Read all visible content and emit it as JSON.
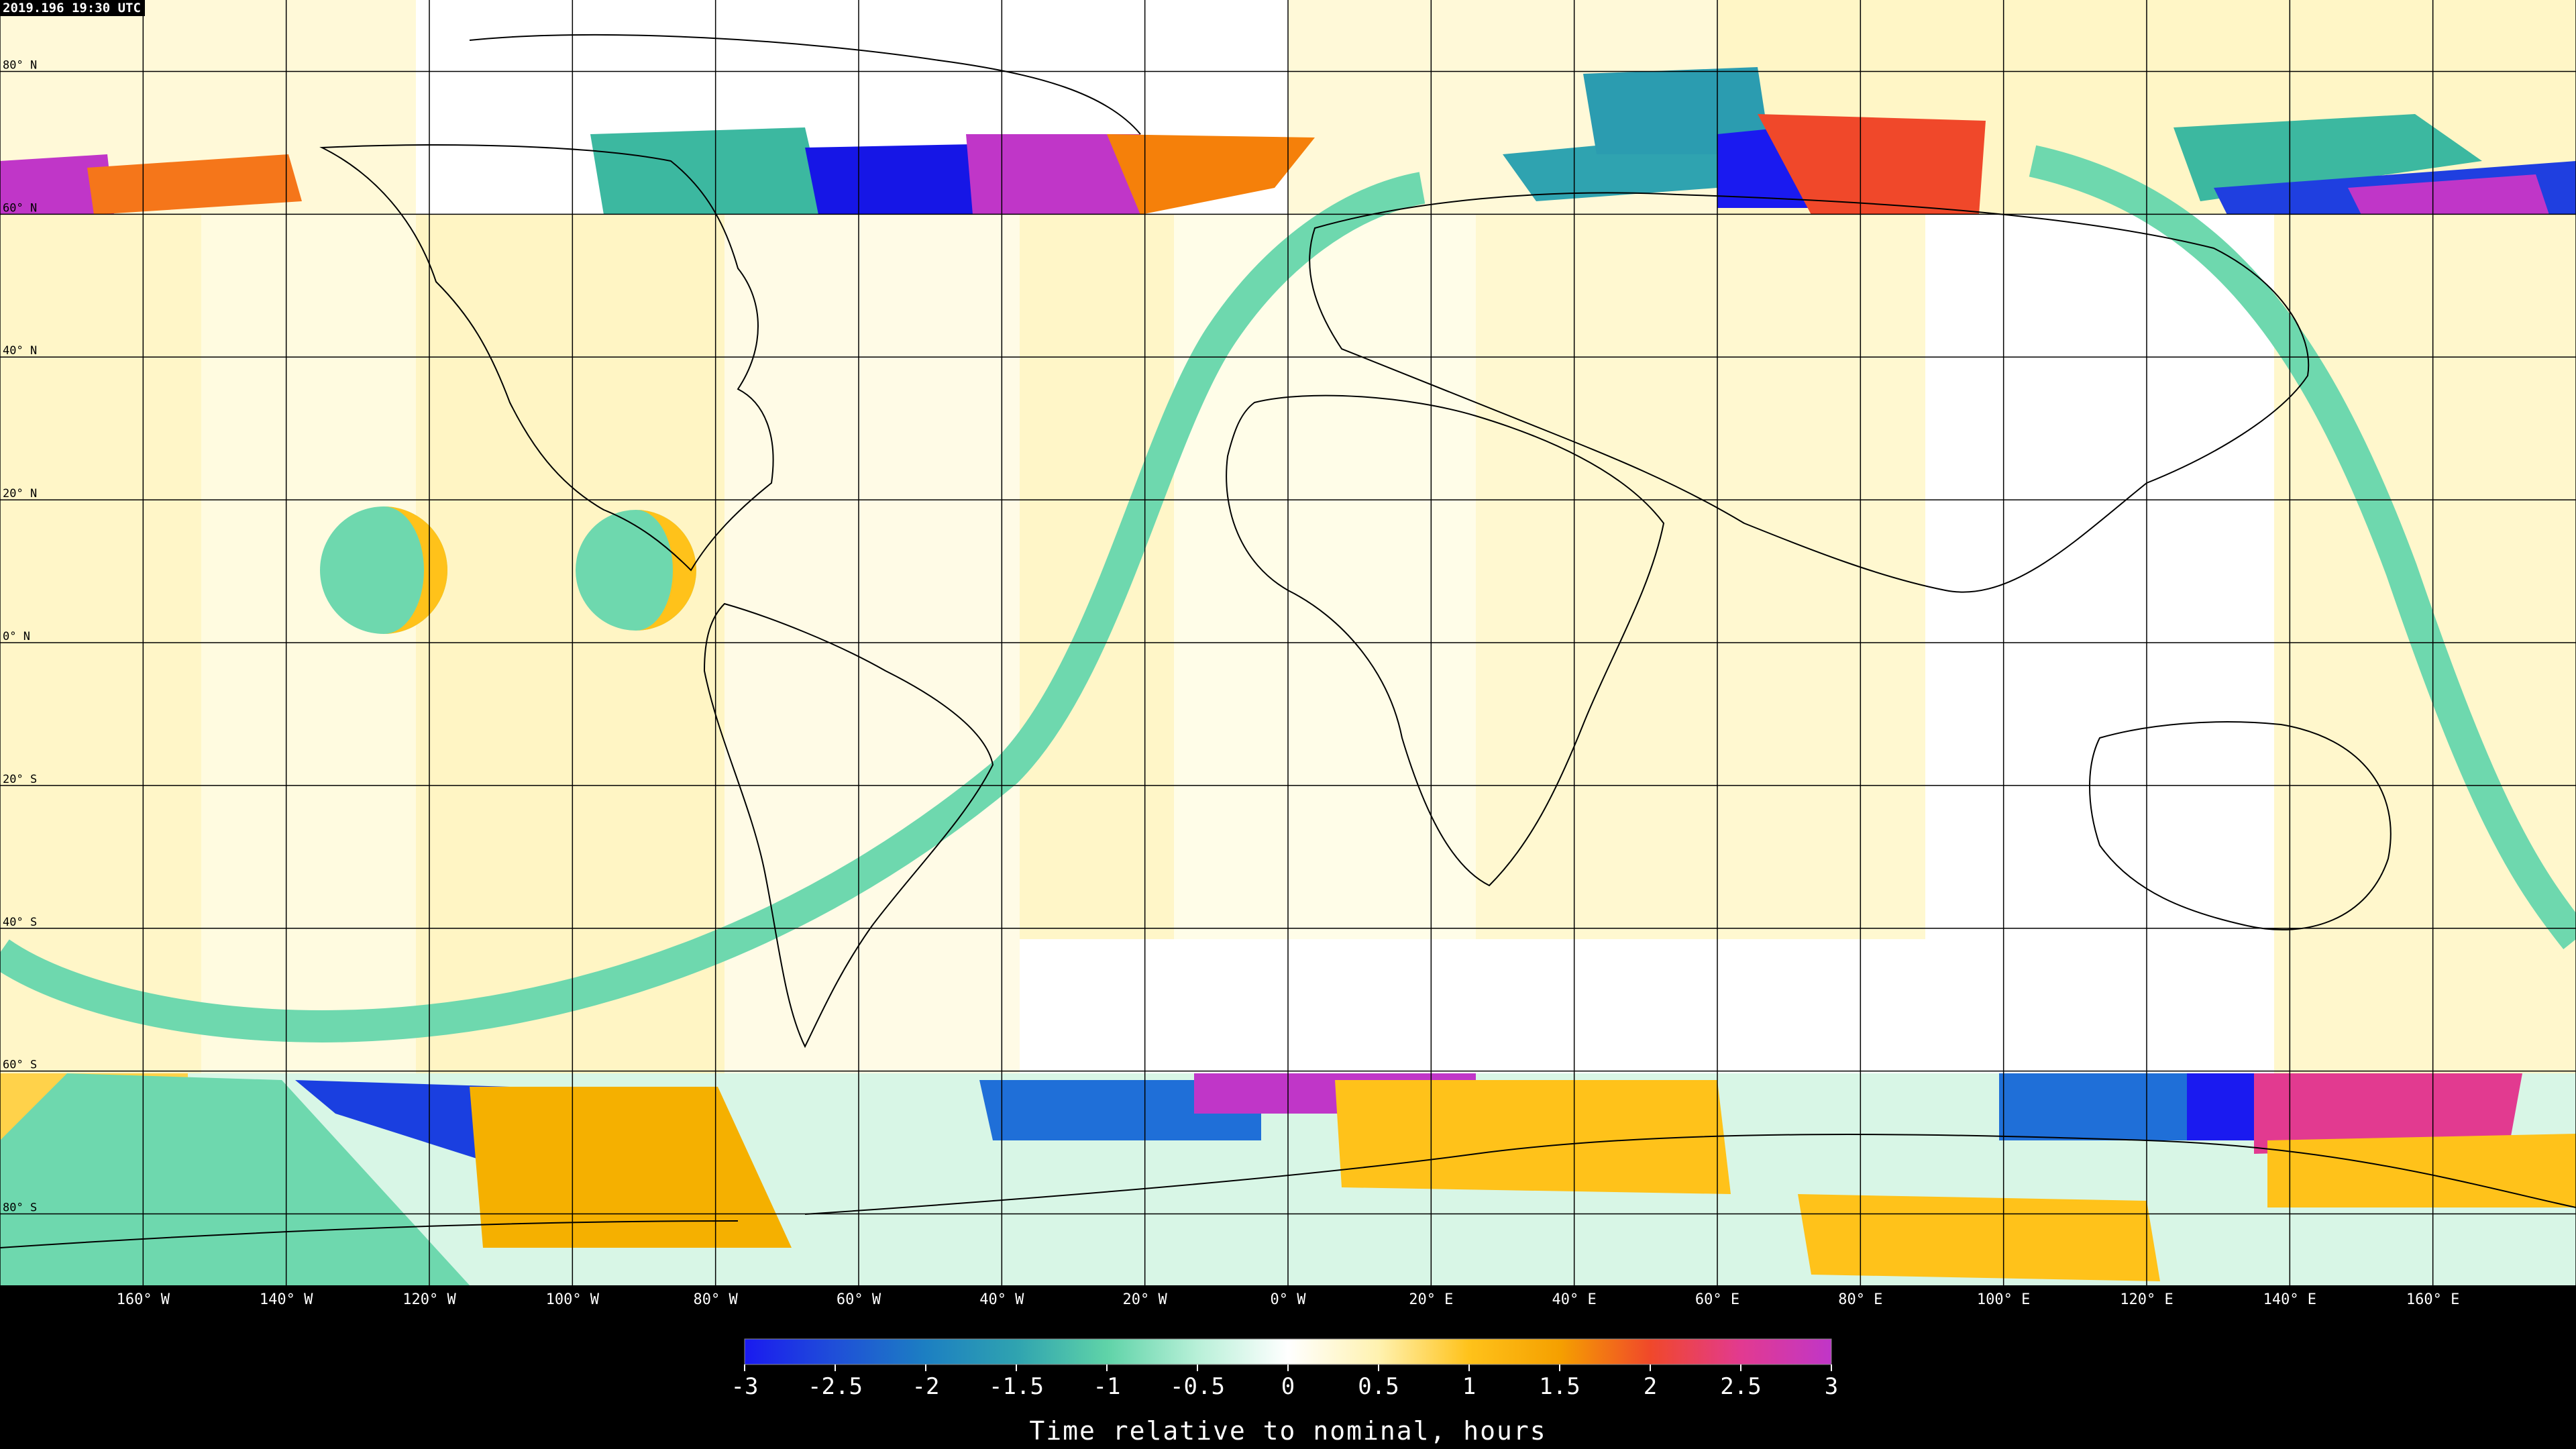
{
  "timestamp": "2019.196 19:30 UTC",
  "lat_labels": [
    {
      "lat": 80,
      "text": "80° N"
    },
    {
      "lat": 60,
      "text": "60° N"
    },
    {
      "lat": 40,
      "text": "40° N"
    },
    {
      "lat": 20,
      "text": "20° N"
    },
    {
      "lat": 0,
      "text": "0° N"
    },
    {
      "lat": -20,
      "text": "20° S"
    },
    {
      "lat": -40,
      "text": "40° S"
    },
    {
      "lat": -60,
      "text": "60° S"
    },
    {
      "lat": -80,
      "text": "80° S"
    }
  ],
  "lon_labels": [
    {
      "lon": -160,
      "text": "160° W"
    },
    {
      "lon": -140,
      "text": "140° W"
    },
    {
      "lon": -120,
      "text": "120° W"
    },
    {
      "lon": -100,
      "text": "100° W"
    },
    {
      "lon": -80,
      "text": "80° W"
    },
    {
      "lon": -60,
      "text": "60° W"
    },
    {
      "lon": -40,
      "text": "40° W"
    },
    {
      "lon": -20,
      "text": "20° W"
    },
    {
      "lon": 0,
      "text": "0° W"
    },
    {
      "lon": 20,
      "text": "20° E"
    },
    {
      "lon": 40,
      "text": "40° E"
    },
    {
      "lon": 60,
      "text": "60° E"
    },
    {
      "lon": 80,
      "text": "80° E"
    },
    {
      "lon": 100,
      "text": "100° E"
    },
    {
      "lon": 120,
      "text": "120° E"
    },
    {
      "lon": 140,
      "text": "140° E"
    },
    {
      "lon": 160,
      "text": "160° E"
    }
  ],
  "colorbar": {
    "title": "Time relative to nominal, hours",
    "min": -3,
    "max": 3,
    "ticks": [
      {
        "value": -3,
        "text": "-3"
      },
      {
        "value": -2.5,
        "text": "-2.5"
      },
      {
        "value": -2,
        "text": "-2"
      },
      {
        "value": -1.5,
        "text": "-1.5"
      },
      {
        "value": -1,
        "text": "-1"
      },
      {
        "value": -0.5,
        "text": "-0.5"
      },
      {
        "value": 0,
        "text": "0"
      },
      {
        "value": 0.5,
        "text": "0.5"
      },
      {
        "value": 1,
        "text": "1"
      },
      {
        "value": 1.5,
        "text": "1.5"
      },
      {
        "value": 2,
        "text": "2"
      },
      {
        "value": 2.5,
        "text": "2.5"
      },
      {
        "value": 3,
        "text": "3"
      }
    ],
    "stops": [
      {
        "value": -3,
        "color": "#1a1af0"
      },
      {
        "value": -2.5,
        "color": "#1f4fd8"
      },
      {
        "value": -2,
        "color": "#1c7fc2"
      },
      {
        "value": -1.5,
        "color": "#2fa3b0"
      },
      {
        "value": -1,
        "color": "#5fd3a8"
      },
      {
        "value": -0.5,
        "color": "#b8f0d8"
      },
      {
        "value": 0,
        "color": "#ffffff"
      },
      {
        "value": 0.5,
        "color": "#fff2b0"
      },
      {
        "value": 1,
        "color": "#ffc21a"
      },
      {
        "value": 1.5,
        "color": "#f5a000"
      },
      {
        "value": 2,
        "color": "#f0482a"
      },
      {
        "value": 2.5,
        "color": "#e23a90"
      },
      {
        "value": 3,
        "color": "#c036c8"
      }
    ]
  },
  "colors": {
    "ocean_background": "#fffbe0",
    "swath_light": "#fff3bd",
    "gap_white": "#ffffff",
    "orbit_track": "#6ed8ae",
    "grid_line": "#000000",
    "coastline": "#000000"
  }
}
